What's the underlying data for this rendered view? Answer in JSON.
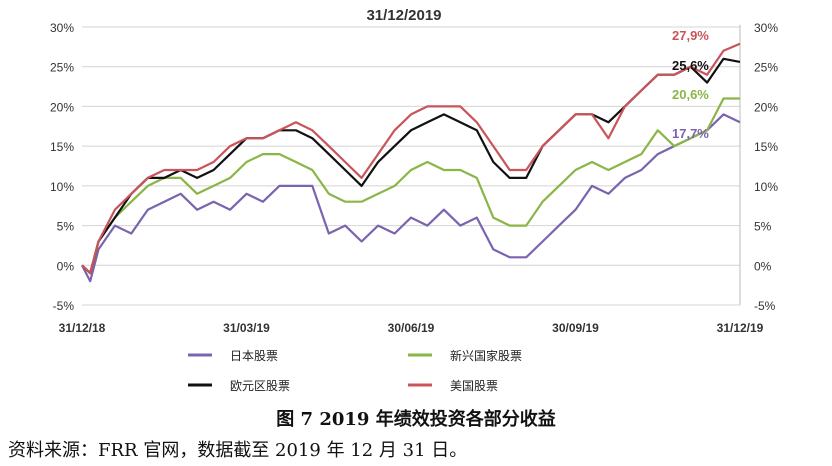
{
  "chart_data": {
    "type": "line",
    "title": "31/12/2019",
    "y_ticks": [
      "30%",
      "25%",
      "20%",
      "15%",
      "10%",
      "5%",
      "0%",
      "-5%"
    ],
    "y_tick_values": [
      30,
      25,
      20,
      15,
      10,
      5,
      0,
      -5
    ],
    "ylim": [
      -5,
      30
    ],
    "x_ticks": [
      "31/12/18",
      "31/03/19",
      "30/06/19",
      "30/09/19",
      "31/12/19"
    ],
    "x_tick_values": [
      0,
      1,
      2,
      3,
      4
    ],
    "grid": true,
    "legend_position": "bottom",
    "series": [
      {
        "name": "日本股票",
        "color": "#7a64b0",
        "end_label": "17,7%",
        "x": [
          0,
          0.05,
          0.1,
          0.2,
          0.3,
          0.4,
          0.5,
          0.6,
          0.7,
          0.8,
          0.9,
          1.0,
          1.1,
          1.2,
          1.3,
          1.4,
          1.5,
          1.6,
          1.7,
          1.8,
          1.9,
          2.0,
          2.1,
          2.2,
          2.3,
          2.4,
          2.5,
          2.6,
          2.7,
          2.8,
          2.9,
          3.0,
          3.1,
          3.2,
          3.3,
          3.4,
          3.5,
          3.6,
          3.7,
          3.8,
          3.9,
          4.0
        ],
        "values": [
          0,
          -2,
          2,
          5,
          4,
          7,
          8,
          9,
          7,
          8,
          7,
          9,
          8,
          10,
          10,
          10,
          4,
          5,
          3,
          5,
          4,
          6,
          5,
          7,
          5,
          6,
          2,
          1,
          1,
          3,
          5,
          7,
          10,
          9,
          11,
          12,
          14,
          15,
          16,
          17,
          19,
          18
        ]
      },
      {
        "name": "新兴国家股票",
        "color": "#8ab547",
        "end_label": "20,6%",
        "x": [
          0,
          0.05,
          0.1,
          0.2,
          0.3,
          0.4,
          0.5,
          0.6,
          0.7,
          0.8,
          0.9,
          1.0,
          1.1,
          1.2,
          1.3,
          1.4,
          1.5,
          1.6,
          1.7,
          1.8,
          1.9,
          2.0,
          2.1,
          2.2,
          2.3,
          2.4,
          2.5,
          2.6,
          2.7,
          2.8,
          2.9,
          3.0,
          3.1,
          3.2,
          3.3,
          3.4,
          3.5,
          3.6,
          3.7,
          3.8,
          3.9,
          4.0
        ],
        "values": [
          0,
          -1,
          3,
          6,
          8,
          10,
          11,
          11,
          9,
          10,
          11,
          13,
          14,
          14,
          13,
          12,
          9,
          8,
          8,
          9,
          10,
          12,
          13,
          12,
          12,
          11,
          6,
          5,
          5,
          8,
          10,
          12,
          13,
          12,
          13,
          14,
          17,
          15,
          16,
          17,
          21,
          21
        ]
      },
      {
        "name": "欧元区股票",
        "color": "#111111",
        "end_label": "25,6%",
        "x": [
          0,
          0.05,
          0.1,
          0.2,
          0.3,
          0.4,
          0.5,
          0.6,
          0.7,
          0.8,
          0.9,
          1.0,
          1.1,
          1.2,
          1.3,
          1.4,
          1.5,
          1.6,
          1.7,
          1.8,
          1.9,
          2.0,
          2.1,
          2.2,
          2.3,
          2.4,
          2.5,
          2.6,
          2.7,
          2.8,
          2.9,
          3.0,
          3.1,
          3.2,
          3.3,
          3.4,
          3.5,
          3.6,
          3.7,
          3.8,
          3.9,
          4.0
        ],
        "values": [
          0,
          -1,
          3,
          6,
          9,
          11,
          11,
          12,
          11,
          12,
          14,
          16,
          16,
          17,
          17,
          16,
          14,
          12,
          10,
          13,
          15,
          17,
          18,
          19,
          18,
          17,
          13,
          11,
          11,
          15,
          17,
          19,
          19,
          18,
          20,
          22,
          24,
          24,
          25,
          23,
          26,
          25.6
        ]
      },
      {
        "name": "美国股票",
        "color": "#c9545a",
        "end_label": "27,9%",
        "x": [
          0,
          0.05,
          0.1,
          0.2,
          0.3,
          0.4,
          0.5,
          0.6,
          0.7,
          0.8,
          0.9,
          1.0,
          1.1,
          1.2,
          1.3,
          1.4,
          1.5,
          1.6,
          1.7,
          1.8,
          1.9,
          2.0,
          2.1,
          2.2,
          2.3,
          2.4,
          2.5,
          2.6,
          2.7,
          2.8,
          2.9,
          3.0,
          3.1,
          3.2,
          3.3,
          3.4,
          3.5,
          3.6,
          3.7,
          3.8,
          3.9,
          4.0
        ],
        "values": [
          0,
          -1,
          3,
          7,
          9,
          11,
          12,
          12,
          12,
          13,
          15,
          16,
          16,
          17,
          18,
          17,
          15,
          13,
          11,
          14,
          17,
          19,
          20,
          20,
          20,
          18,
          15,
          12,
          12,
          15,
          17,
          19,
          19,
          16,
          20,
          22,
          24,
          24,
          25,
          24,
          27,
          27.9
        ]
      }
    ]
  },
  "caption": "图 7   2019 年绩效投资各部分收益",
  "source": "资料来源：FRR 官网，数据截至 2019 年 12 月 31 日。"
}
